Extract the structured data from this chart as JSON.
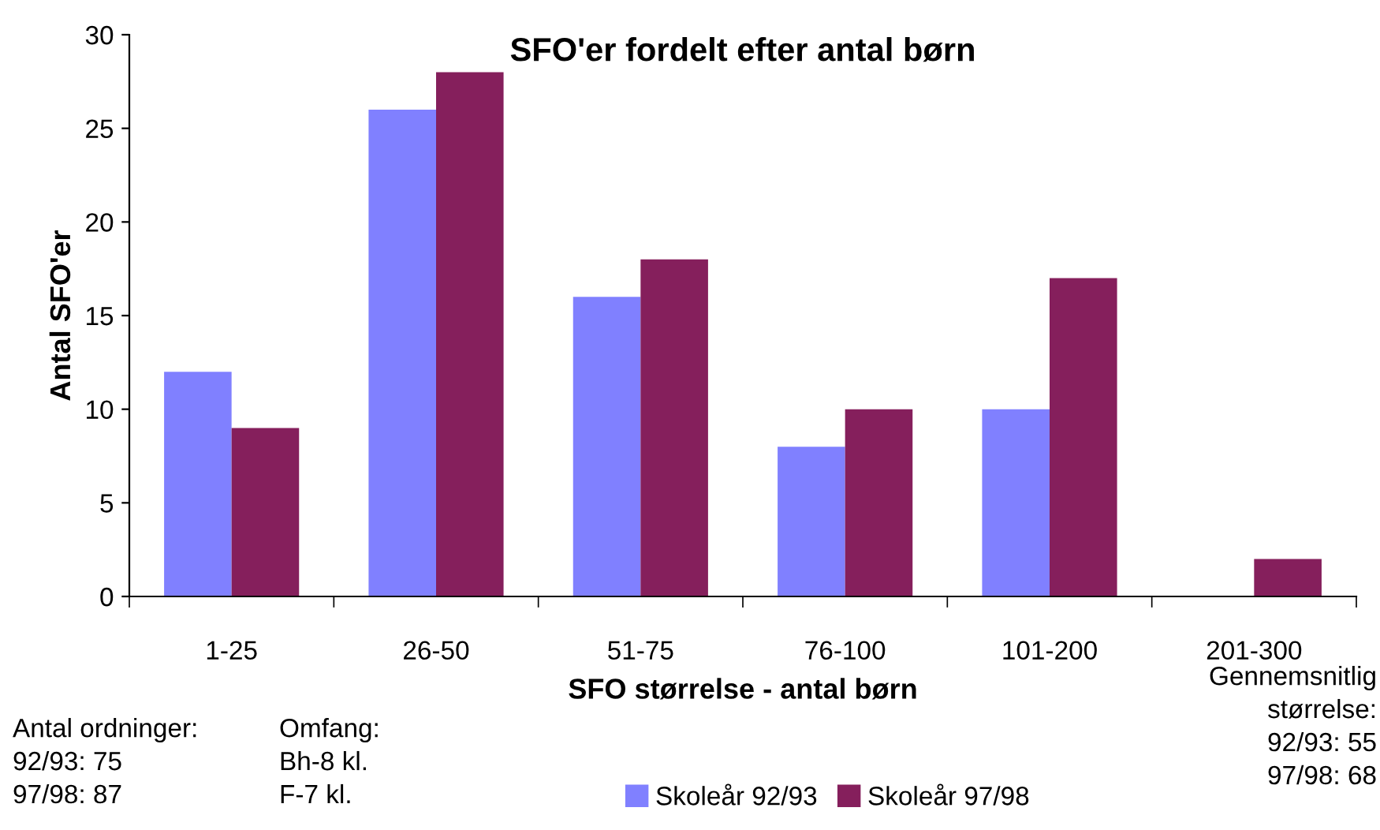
{
  "chart_data": {
    "type": "bar",
    "title": "SFO'er fordelt efter antal børn",
    "xlabel": "SFO størrelse - antal børn",
    "ylabel": "Antal SFO'er",
    "categories": [
      "1-25",
      "26-50",
      "51-75",
      "76-100",
      "101-200",
      "201-300"
    ],
    "series": [
      {
        "name": "Skoleår 92/93",
        "color": "#8080ff",
        "values": [
          12,
          26,
          16,
          8,
          10,
          0
        ]
      },
      {
        "name": "Skoleår 97/98",
        "color": "#851f5c",
        "values": [
          9,
          28,
          18,
          10,
          17,
          2
        ]
      }
    ],
    "ylim": [
      0,
      30
    ],
    "yticks": [
      0,
      5,
      10,
      15,
      20,
      25,
      30
    ],
    "grid": false,
    "legend": "bottom",
    "annotations": [
      "Antal ordninger:\n92/93: 75\n97/98: 87",
      "Omfang:\nBh-8 kl.\nF-7 kl.",
      "Gennemsnitlig\nstørrelse:\n92/93: 55\n97/98: 68"
    ]
  }
}
